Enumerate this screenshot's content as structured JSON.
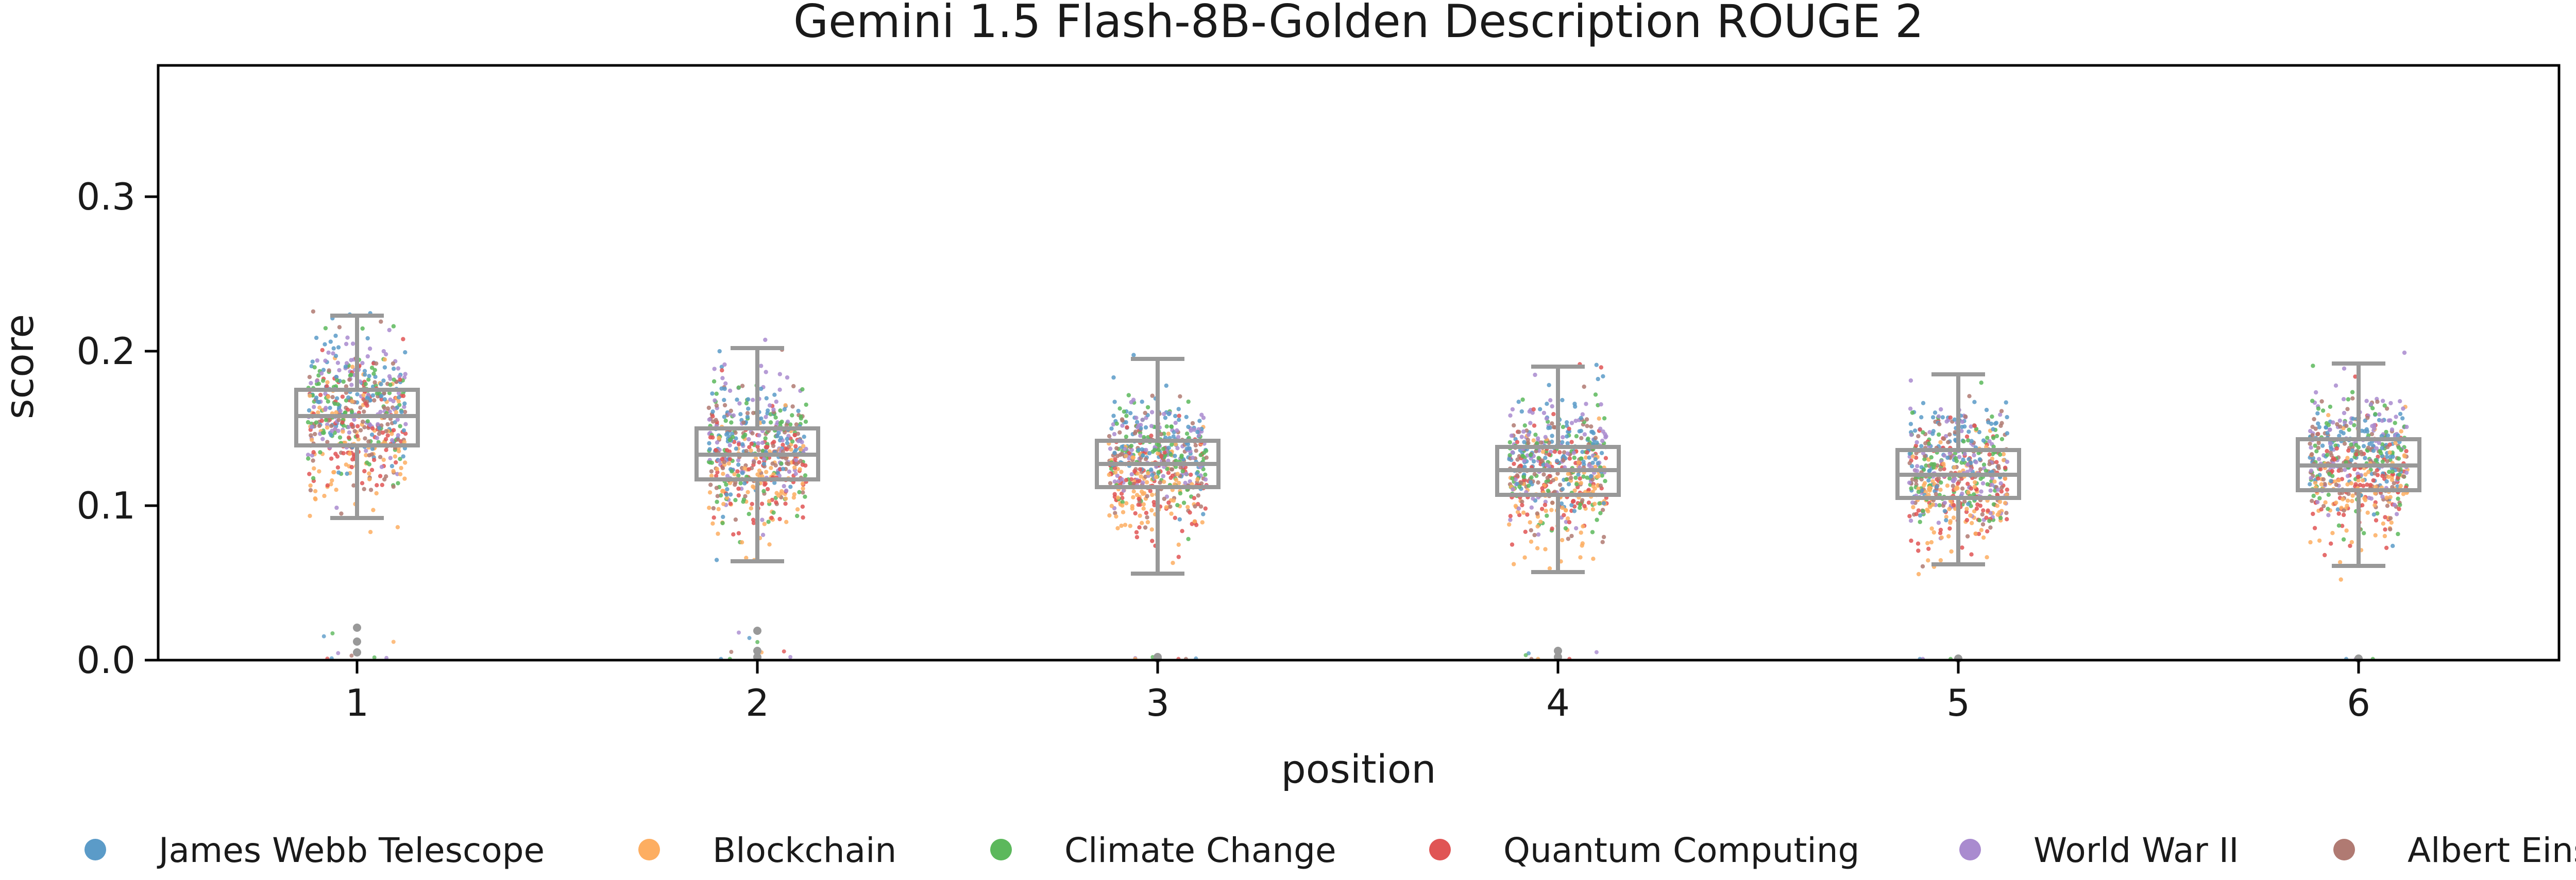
{
  "chart_data": {
    "type": "strip-box",
    "title": "Gemini 1.5 Flash-8B-Golden Description ROUGE 2",
    "xlabel": "position",
    "ylabel": "score",
    "categories": [
      "1",
      "2",
      "3",
      "4",
      "5",
      "6"
    ],
    "ylim": [
      0.0,
      0.385
    ],
    "yticks": [
      0.0,
      0.1,
      0.2,
      0.3
    ],
    "ytick_labels": [
      "0.0",
      "0.1",
      "0.2",
      "0.3"
    ],
    "grid": false,
    "legend_position": "bottom",
    "box_color": "#999999",
    "boxes": [
      {
        "position": "1",
        "q1": 0.139,
        "median": 0.158,
        "q3": 0.175,
        "whisker_low": 0.092,
        "whisker_high": 0.223,
        "min": 0.077,
        "max": 0.23,
        "outliers": [
          0.021,
          0.012,
          0.005
        ]
      },
      {
        "position": "2",
        "q1": 0.117,
        "median": 0.133,
        "q3": 0.15,
        "whisker_low": 0.064,
        "whisker_high": 0.202,
        "min": 0.063,
        "max": 0.216,
        "outliers": [
          0.019,
          0.006,
          0.002
        ]
      },
      {
        "position": "3",
        "q1": 0.112,
        "median": 0.127,
        "q3": 0.142,
        "whisker_low": 0.056,
        "whisker_high": 0.195,
        "min": 0.052,
        "max": 0.215,
        "outliers": [
          0.002,
          0.001
        ]
      },
      {
        "position": "4",
        "q1": 0.107,
        "median": 0.123,
        "q3": 0.138,
        "whisker_low": 0.057,
        "whisker_high": 0.19,
        "min": 0.055,
        "max": 0.2,
        "outliers": [
          0.006,
          0.002
        ]
      },
      {
        "position": "5",
        "q1": 0.105,
        "median": 0.12,
        "q3": 0.136,
        "whisker_low": 0.062,
        "whisker_high": 0.185,
        "min": 0.051,
        "max": 0.196,
        "outliers": [
          0.001
        ]
      },
      {
        "position": "6",
        "q1": 0.11,
        "median": 0.126,
        "q3": 0.143,
        "whisker_low": 0.061,
        "whisker_high": 0.192,
        "min": 0.045,
        "max": 0.203,
        "outliers": [
          0.001
        ]
      }
    ],
    "series": [
      {
        "name": "James Webb Telescope",
        "color": "#5b9bc8",
        "mean_offset": 0.012
      },
      {
        "name": "Blockchain",
        "color": "#fdae61",
        "mean_offset": -0.018
      },
      {
        "name": "Climate Change",
        "color": "#5cb85c",
        "mean_offset": 0.004
      },
      {
        "name": "Quantum Computing",
        "color": "#e05555",
        "mean_offset": -0.008
      },
      {
        "name": "World War II",
        "color": "#a98bcf",
        "mean_offset": 0.01
      },
      {
        "name": "Albert Einstein",
        "color": "#b07a72",
        "mean_offset": 0.002
      }
    ]
  }
}
